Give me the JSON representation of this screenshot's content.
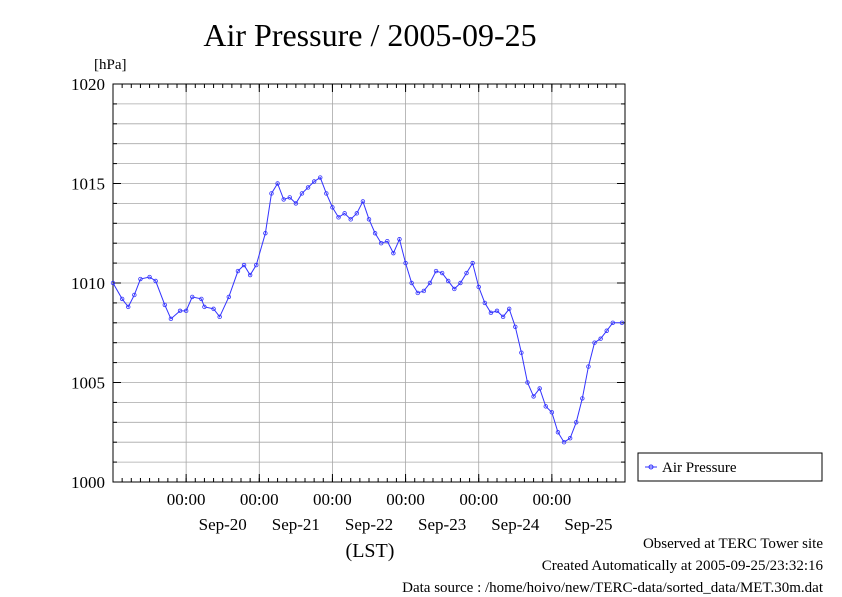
{
  "chart_data": {
    "type": "line",
    "title": "Air Pressure / 2005-09-25",
    "ylabel": "[hPa]",
    "xlabel": "(LST)",
    "ylim": [
      1000,
      1020
    ],
    "xlim": [
      "2005-09-19T00:00",
      "2005-09-26T00:00"
    ],
    "y_ticks": [
      1000,
      1005,
      1010,
      1015,
      1020
    ],
    "x_ticks": [
      {
        "time": "2005-09-20T00:00",
        "label": "00:00",
        "date": "Sep-20"
      },
      {
        "time": "2005-09-21T00:00",
        "label": "00:00",
        "date": "Sep-21"
      },
      {
        "time": "2005-09-22T00:00",
        "label": "00:00",
        "date": "Sep-22"
      },
      {
        "time": "2005-09-23T00:00",
        "label": "00:00",
        "date": "Sep-23"
      },
      {
        "time": "2005-09-24T00:00",
        "label": "00:00",
        "date": "Sep-24"
      },
      {
        "time": "2005-09-25T00:00",
        "label": "00:00",
        "date": "Sep-25"
      }
    ],
    "grid": true,
    "legend_position": "right",
    "series": [
      {
        "name": "Air Pressure",
        "color": "#3333ff",
        "marker": "circle",
        "points": [
          [
            "2005-09-19T00:00",
            1010.0
          ],
          [
            "2005-09-19T03:00",
            1009.2
          ],
          [
            "2005-09-19T05:00",
            1008.8
          ],
          [
            "2005-09-19T07:00",
            1009.4
          ],
          [
            "2005-09-19T09:00",
            1010.2
          ],
          [
            "2005-09-19T12:00",
            1010.3
          ],
          [
            "2005-09-19T14:00",
            1010.1
          ],
          [
            "2005-09-19T17:00",
            1008.9
          ],
          [
            "2005-09-19T19:00",
            1008.2
          ],
          [
            "2005-09-19T22:00",
            1008.6
          ],
          [
            "2005-09-20T00:00",
            1008.6
          ],
          [
            "2005-09-20T02:00",
            1009.3
          ],
          [
            "2005-09-20T05:00",
            1009.2
          ],
          [
            "2005-09-20T06:00",
            1008.8
          ],
          [
            "2005-09-20T09:00",
            1008.7
          ],
          [
            "2005-09-20T11:00",
            1008.3
          ],
          [
            "2005-09-20T14:00",
            1009.3
          ],
          [
            "2005-09-20T17:00",
            1010.6
          ],
          [
            "2005-09-20T19:00",
            1010.9
          ],
          [
            "2005-09-20T21:00",
            1010.4
          ],
          [
            "2005-09-20T23:00",
            1010.9
          ],
          [
            "2005-09-21T02:00",
            1012.5
          ],
          [
            "2005-09-21T04:00",
            1014.5
          ],
          [
            "2005-09-21T06:00",
            1015.0
          ],
          [
            "2005-09-21T08:00",
            1014.2
          ],
          [
            "2005-09-21T10:00",
            1014.3
          ],
          [
            "2005-09-21T12:00",
            1014.0
          ],
          [
            "2005-09-21T14:00",
            1014.5
          ],
          [
            "2005-09-21T16:00",
            1014.8
          ],
          [
            "2005-09-21T18:00",
            1015.1
          ],
          [
            "2005-09-21T20:00",
            1015.3
          ],
          [
            "2005-09-21T22:00",
            1014.5
          ],
          [
            "2005-09-22T00:00",
            1013.8
          ],
          [
            "2005-09-22T02:00",
            1013.3
          ],
          [
            "2005-09-22T04:00",
            1013.5
          ],
          [
            "2005-09-22T06:00",
            1013.2
          ],
          [
            "2005-09-22T08:00",
            1013.5
          ],
          [
            "2005-09-22T10:00",
            1014.1
          ],
          [
            "2005-09-22T12:00",
            1013.2
          ],
          [
            "2005-09-22T14:00",
            1012.5
          ],
          [
            "2005-09-22T16:00",
            1012.0
          ],
          [
            "2005-09-22T18:00",
            1012.1
          ],
          [
            "2005-09-22T20:00",
            1011.5
          ],
          [
            "2005-09-22T22:00",
            1012.2
          ],
          [
            "2005-09-23T00:00",
            1011.0
          ],
          [
            "2005-09-23T02:00",
            1010.0
          ],
          [
            "2005-09-23T04:00",
            1009.5
          ],
          [
            "2005-09-23T06:00",
            1009.6
          ],
          [
            "2005-09-23T08:00",
            1010.0
          ],
          [
            "2005-09-23T10:00",
            1010.6
          ],
          [
            "2005-09-23T12:00",
            1010.5
          ],
          [
            "2005-09-23T14:00",
            1010.1
          ],
          [
            "2005-09-23T16:00",
            1009.7
          ],
          [
            "2005-09-23T18:00",
            1010.0
          ],
          [
            "2005-09-23T20:00",
            1010.5
          ],
          [
            "2005-09-23T22:00",
            1011.0
          ],
          [
            "2005-09-24T00:00",
            1009.8
          ],
          [
            "2005-09-24T02:00",
            1009.0
          ],
          [
            "2005-09-24T04:00",
            1008.5
          ],
          [
            "2005-09-24T06:00",
            1008.6
          ],
          [
            "2005-09-24T08:00",
            1008.3
          ],
          [
            "2005-09-24T10:00",
            1008.7
          ],
          [
            "2005-09-24T12:00",
            1007.8
          ],
          [
            "2005-09-24T14:00",
            1006.5
          ],
          [
            "2005-09-24T16:00",
            1005.0
          ],
          [
            "2005-09-24T18:00",
            1004.3
          ],
          [
            "2005-09-24T20:00",
            1004.7
          ],
          [
            "2005-09-24T22:00",
            1003.8
          ],
          [
            "2005-09-25T00:00",
            1003.5
          ],
          [
            "2005-09-25T02:00",
            1002.5
          ],
          [
            "2005-09-25T04:00",
            1002.0
          ],
          [
            "2005-09-25T06:00",
            1002.2
          ],
          [
            "2005-09-25T08:00",
            1003.0
          ],
          [
            "2005-09-25T10:00",
            1004.2
          ],
          [
            "2005-09-25T12:00",
            1005.8
          ],
          [
            "2005-09-25T14:00",
            1007.0
          ],
          [
            "2005-09-25T16:00",
            1007.2
          ],
          [
            "2005-09-25T18:00",
            1007.6
          ],
          [
            "2005-09-25T20:00",
            1008.0
          ],
          [
            "2005-09-25T23:00",
            1008.0
          ]
        ]
      }
    ]
  },
  "footer": {
    "observed": "Observed at TERC Tower site",
    "created": "Created Automatically at 2005-09-25/23:32:16",
    "source": "Data source : /home/hoivo/new/TERC-data/sorted_data/MET.30m.dat"
  }
}
